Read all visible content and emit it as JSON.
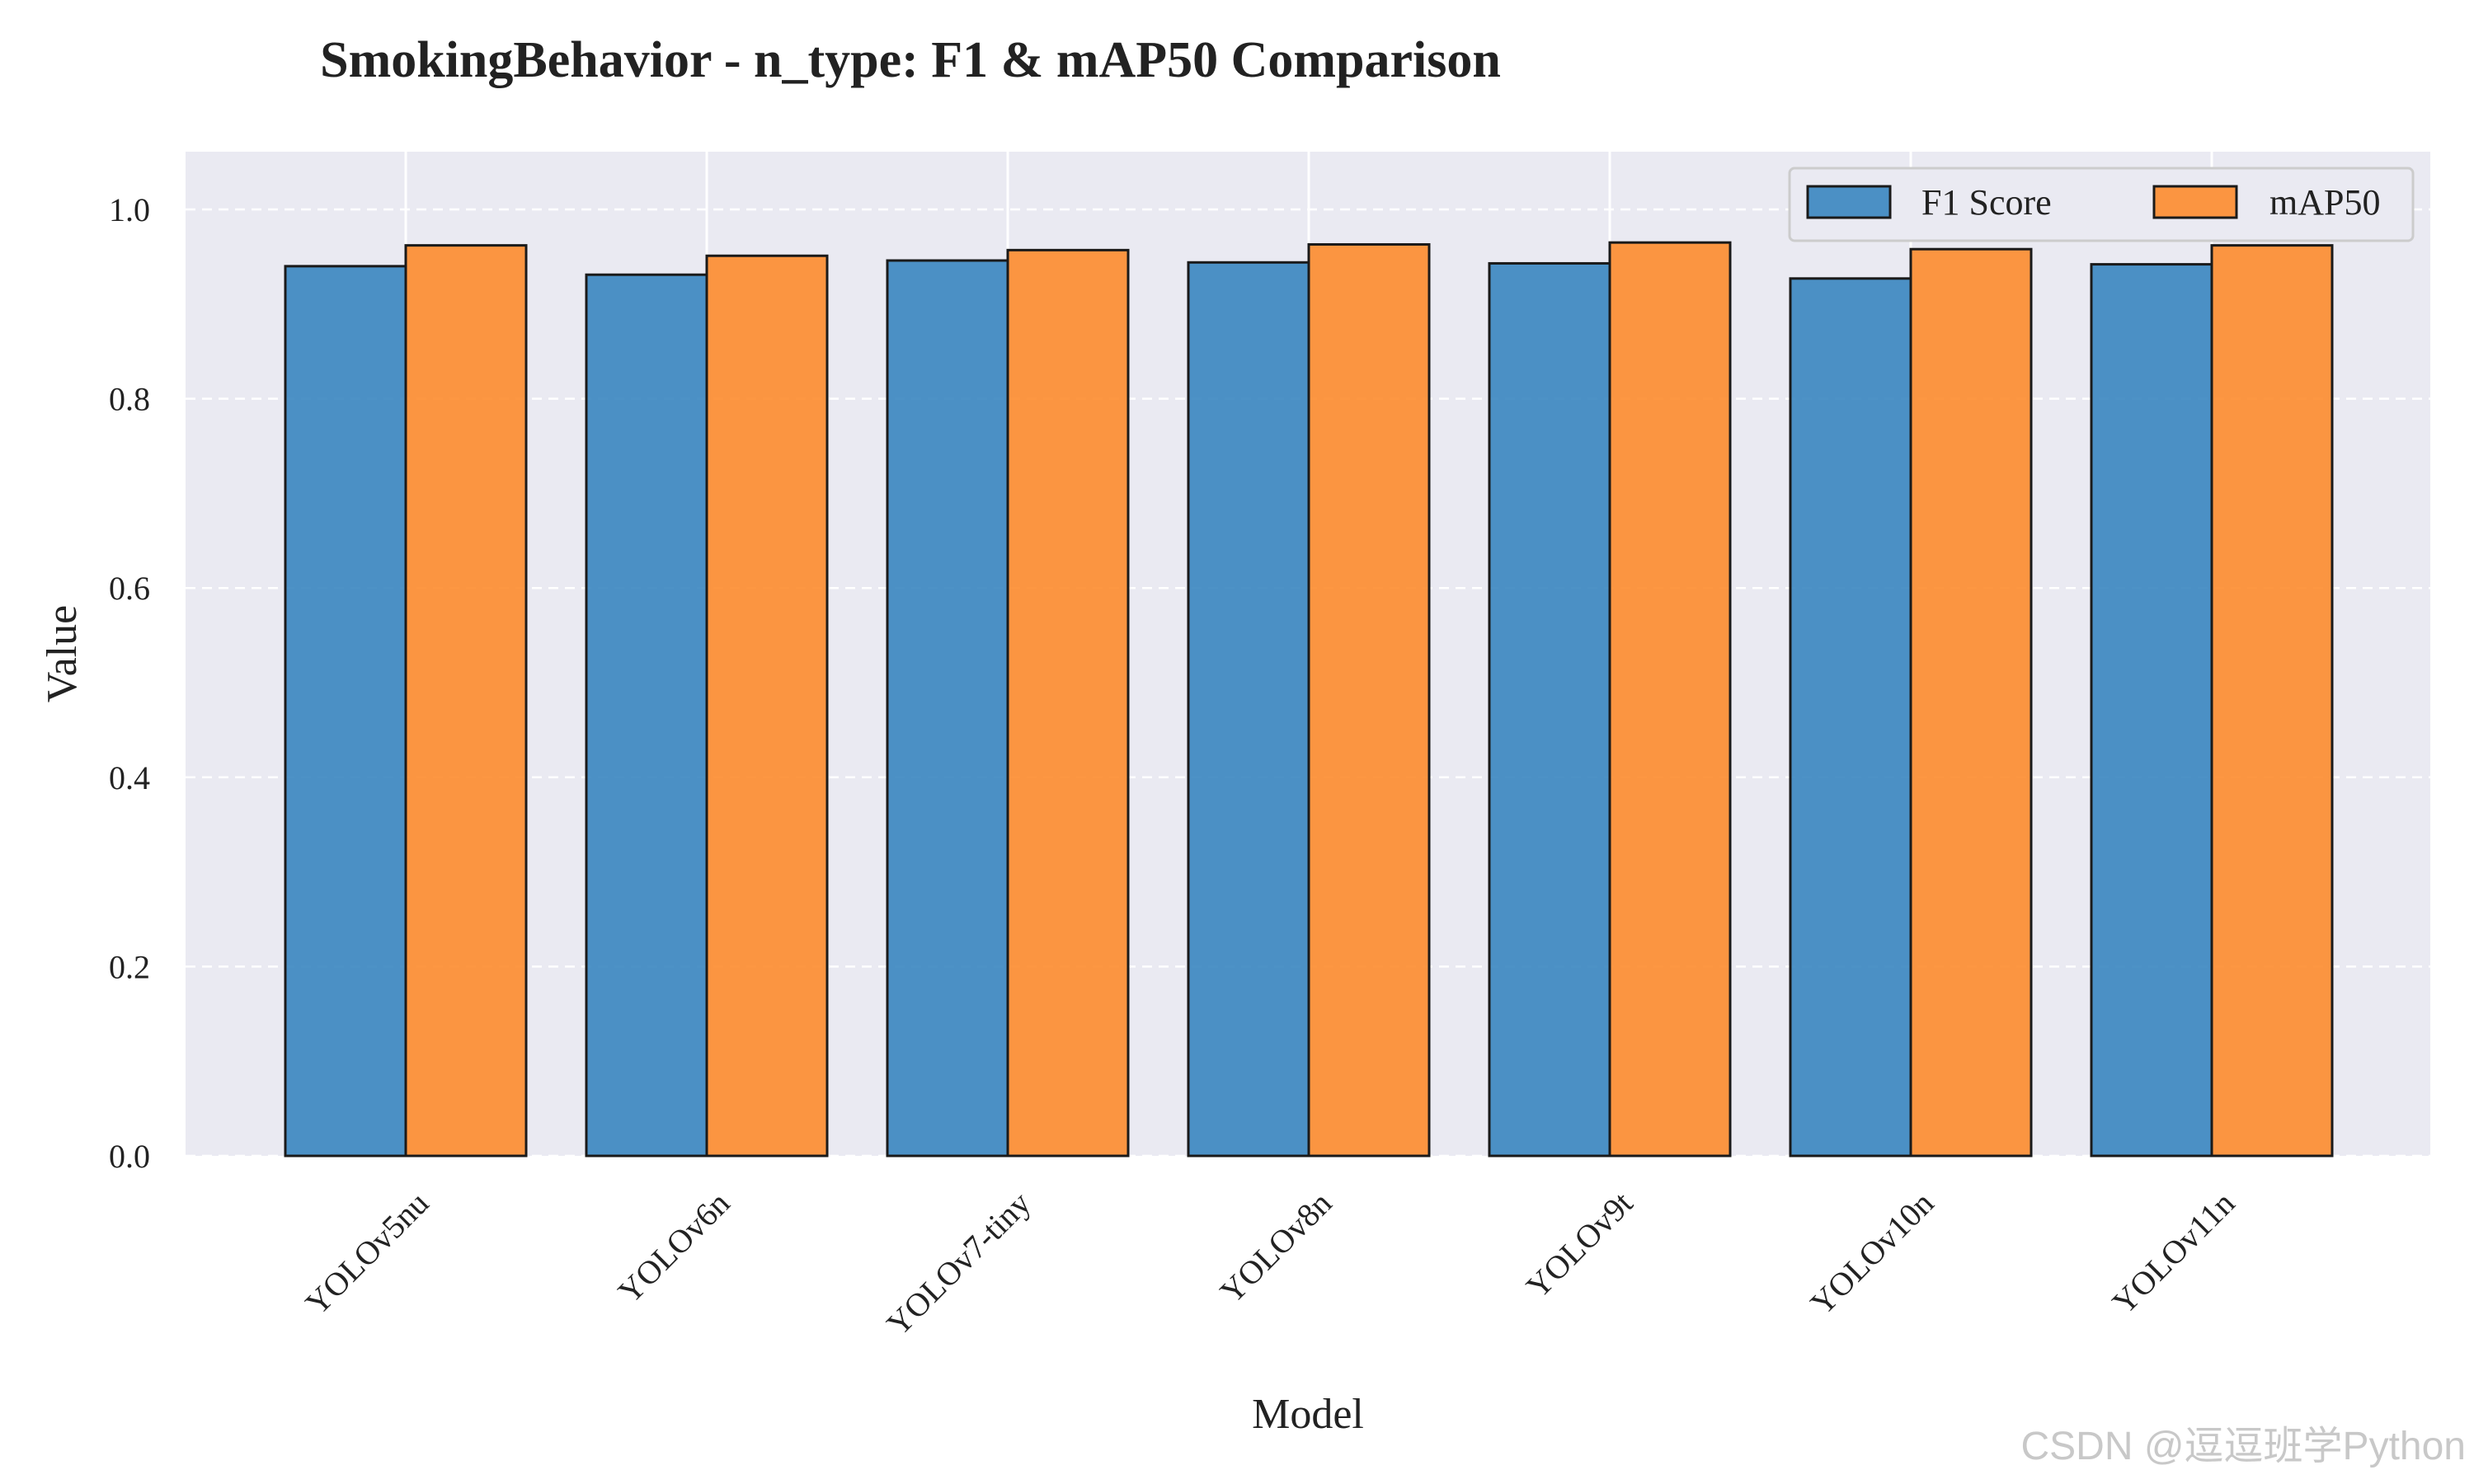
{
  "chart_data": {
    "type": "bar",
    "title": "SmokingBehavior - n_type: F1 & mAP50 Comparison",
    "xlabel": "Model",
    "ylabel": "Value",
    "ylim": [
      0,
      1.0
    ],
    "yticks": [
      "0.0",
      "0.2",
      "0.4",
      "0.6",
      "0.8",
      "1.0"
    ],
    "categories": [
      "YOLOv5nu",
      "YOLOv6n",
      "YOLOv7-tiny",
      "YOLOv8n",
      "YOLOv9t",
      "YOLOv10n",
      "YOLOv11n"
    ],
    "series": [
      {
        "name": "F1 Score",
        "color": "#3a86c0",
        "values": [
          0.94,
          0.931,
          0.946,
          0.944,
          0.943,
          0.927,
          0.942
        ]
      },
      {
        "name": "mAP50",
        "color": "#fd8c2e",
        "values": [
          0.962,
          0.951,
          0.957,
          0.963,
          0.965,
          0.958,
          0.962
        ]
      }
    ],
    "grid": true,
    "legend_position": "top-right",
    "background": "#eaeaf2"
  },
  "watermark": "CSDN @逗逗班学Python"
}
